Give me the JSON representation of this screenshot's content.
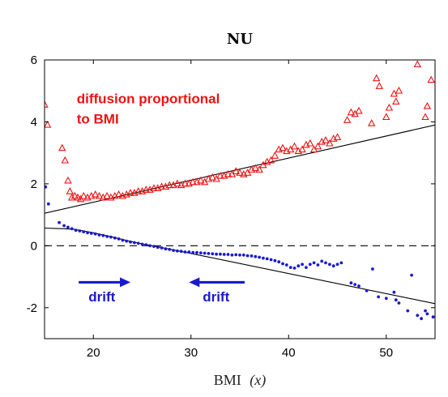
{
  "chart_data": {
    "type": "scatter",
    "title": "NU",
    "xlabel": "BMI",
    "xlabel_var": "(x)",
    "ylabel": "",
    "xlim": [
      15,
      55
    ],
    "ylim": [
      -3,
      6
    ],
    "xticks": [
      20,
      30,
      40,
      50
    ],
    "yticks": [
      -2,
      0,
      2,
      4,
      6
    ],
    "grid": false,
    "colors": {
      "diffusion": "#ee1111",
      "drift": "#1a1acc",
      "fit": "#000000"
    },
    "series": [
      {
        "marker": "triangle",
        "points": [
          [
            15.0,
            4.55
          ],
          [
            15.3,
            3.9
          ],
          [
            16.8,
            3.15
          ],
          [
            17.1,
            2.75
          ],
          [
            17.4,
            2.1
          ],
          [
            17.6,
            1.75
          ],
          [
            17.8,
            1.55
          ],
          [
            18.1,
            1.6
          ],
          [
            18.4,
            1.55
          ],
          [
            18.7,
            1.5
          ],
          [
            19.0,
            1.6
          ],
          [
            19.4,
            1.55
          ],
          [
            19.8,
            1.6
          ],
          [
            20.2,
            1.65
          ],
          [
            20.6,
            1.6
          ],
          [
            21.0,
            1.55
          ],
          [
            21.4,
            1.6
          ],
          [
            21.8,
            1.55
          ],
          [
            22.2,
            1.6
          ],
          [
            22.6,
            1.65
          ],
          [
            23.0,
            1.6
          ],
          [
            23.4,
            1.65
          ],
          [
            23.8,
            1.7
          ],
          [
            24.2,
            1.7
          ],
          [
            24.6,
            1.75
          ],
          [
            25.0,
            1.75
          ],
          [
            25.4,
            1.8
          ],
          [
            25.8,
            1.8
          ],
          [
            26.2,
            1.85
          ],
          [
            26.6,
            1.85
          ],
          [
            27.0,
            1.9
          ],
          [
            27.4,
            1.9
          ],
          [
            27.8,
            1.95
          ],
          [
            28.2,
            1.95
          ],
          [
            28.6,
            2.0
          ],
          [
            29.0,
            1.95
          ],
          [
            29.4,
            2.0
          ],
          [
            29.8,
            2.0
          ],
          [
            30.2,
            2.05
          ],
          [
            30.6,
            2.05
          ],
          [
            31.0,
            2.1
          ],
          [
            31.4,
            2.05
          ],
          [
            31.8,
            2.15
          ],
          [
            32.2,
            2.2
          ],
          [
            32.6,
            2.15
          ],
          [
            33.0,
            2.25
          ],
          [
            33.4,
            2.25
          ],
          [
            33.8,
            2.3
          ],
          [
            34.2,
            2.3
          ],
          [
            34.6,
            2.4
          ],
          [
            35.0,
            2.35
          ],
          [
            35.4,
            2.3
          ],
          [
            35.8,
            2.35
          ],
          [
            36.2,
            2.45
          ],
          [
            36.6,
            2.5
          ],
          [
            37.0,
            2.45
          ],
          [
            37.4,
            2.6
          ],
          [
            37.8,
            2.7
          ],
          [
            38.2,
            2.75
          ],
          [
            38.6,
            2.9
          ],
          [
            39.0,
            3.1
          ],
          [
            39.4,
            3.15
          ],
          [
            39.8,
            3.05
          ],
          [
            40.2,
            3.1
          ],
          [
            40.6,
            3.2
          ],
          [
            41.0,
            3.05
          ],
          [
            41.4,
            3.1
          ],
          [
            41.8,
            3.25
          ],
          [
            42.2,
            3.3
          ],
          [
            42.6,
            3.1
          ],
          [
            43.0,
            3.2
          ],
          [
            43.4,
            3.35
          ],
          [
            43.8,
            3.4
          ],
          [
            44.2,
            3.3
          ],
          [
            44.6,
            3.45
          ],
          [
            45.0,
            3.5
          ],
          [
            46.0,
            4.05
          ],
          [
            46.4,
            4.3
          ],
          [
            46.8,
            4.25
          ],
          [
            47.2,
            4.35
          ],
          [
            48.5,
            3.95
          ],
          [
            49.0,
            5.4
          ],
          [
            49.3,
            5.15
          ],
          [
            50.0,
            4.15
          ],
          [
            50.3,
            4.45
          ],
          [
            50.8,
            4.9
          ],
          [
            51.0,
            4.65
          ],
          [
            51.3,
            5.0
          ],
          [
            53.2,
            5.85
          ],
          [
            54.0,
            4.15
          ],
          [
            54.2,
            4.5
          ],
          [
            54.6,
            5.35
          ]
        ]
      },
      {
        "marker": "dot",
        "points": [
          [
            15.1,
            1.9
          ],
          [
            15.4,
            1.35
          ],
          [
            16.5,
            0.75
          ],
          [
            17.0,
            0.65
          ],
          [
            17.4,
            0.6
          ],
          [
            17.8,
            0.55
          ],
          [
            18.2,
            0.5
          ],
          [
            18.6,
            0.48
          ],
          [
            19.0,
            0.45
          ],
          [
            19.4,
            0.42
          ],
          [
            19.8,
            0.4
          ],
          [
            20.2,
            0.38
          ],
          [
            20.6,
            0.35
          ],
          [
            21.0,
            0.33
          ],
          [
            21.4,
            0.3
          ],
          [
            21.8,
            0.28
          ],
          [
            22.2,
            0.25
          ],
          [
            22.6,
            0.22
          ],
          [
            23.0,
            0.18
          ],
          [
            23.4,
            0.15
          ],
          [
            23.8,
            0.12
          ],
          [
            24.2,
            0.1
          ],
          [
            24.6,
            0.08
          ],
          [
            25.0,
            0.05
          ],
          [
            25.4,
            0.03
          ],
          [
            25.8,
            0.0
          ],
          [
            26.2,
            -0.02
          ],
          [
            26.6,
            -0.05
          ],
          [
            27.0,
            -0.07
          ],
          [
            27.4,
            -0.1
          ],
          [
            27.8,
            -0.12
          ],
          [
            28.2,
            -0.15
          ],
          [
            28.6,
            -0.17
          ],
          [
            29.0,
            -0.18
          ],
          [
            29.4,
            -0.2
          ],
          [
            29.8,
            -0.2
          ],
          [
            30.2,
            -0.22
          ],
          [
            30.6,
            -0.22
          ],
          [
            31.0,
            -0.23
          ],
          [
            31.4,
            -0.24
          ],
          [
            31.8,
            -0.25
          ],
          [
            32.2,
            -0.26
          ],
          [
            32.6,
            -0.27
          ],
          [
            33.0,
            -0.27
          ],
          [
            33.4,
            -0.28
          ],
          [
            33.8,
            -0.28
          ],
          [
            34.2,
            -0.3
          ],
          [
            34.6,
            -0.29
          ],
          [
            35.0,
            -0.3
          ],
          [
            35.4,
            -0.3
          ],
          [
            35.8,
            -0.32
          ],
          [
            36.2,
            -0.33
          ],
          [
            36.6,
            -0.35
          ],
          [
            37.0,
            -0.37
          ],
          [
            37.4,
            -0.4
          ],
          [
            37.8,
            -0.42
          ],
          [
            38.2,
            -0.45
          ],
          [
            38.6,
            -0.48
          ],
          [
            39.0,
            -0.52
          ],
          [
            39.4,
            -0.58
          ],
          [
            39.8,
            -0.62
          ],
          [
            40.2,
            -0.7
          ],
          [
            40.6,
            -0.72
          ],
          [
            41.0,
            -0.65
          ],
          [
            41.4,
            -0.6
          ],
          [
            41.8,
            -0.7
          ],
          [
            42.2,
            -0.6
          ],
          [
            42.6,
            -0.55
          ],
          [
            43.0,
            -0.62
          ],
          [
            43.4,
            -0.5
          ],
          [
            43.8,
            -0.55
          ],
          [
            44.2,
            -0.6
          ],
          [
            44.6,
            -0.65
          ],
          [
            45.0,
            -0.6
          ],
          [
            45.4,
            -0.55
          ],
          [
            46.4,
            -1.2
          ],
          [
            46.8,
            -1.25
          ],
          [
            47.2,
            -1.3
          ],
          [
            48.0,
            -1.45
          ],
          [
            48.6,
            -0.75
          ],
          [
            49.2,
            -1.65
          ],
          [
            50.0,
            -1.7
          ],
          [
            50.8,
            -1.5
          ],
          [
            51.0,
            -1.75
          ],
          [
            51.3,
            -1.85
          ],
          [
            52.2,
            -2.1
          ],
          [
            52.6,
            -0.95
          ],
          [
            53.2,
            -2.25
          ],
          [
            53.6,
            -2.35
          ],
          [
            54.0,
            -2.1
          ],
          [
            54.2,
            -2.2
          ],
          [
            54.8,
            -2.3
          ]
        ]
      }
    ],
    "fit_lines": [
      {
        "x": [
          15,
          55
        ],
        "y": [
          1.05,
          3.9
        ]
      },
      {
        "x": [
          15,
          16,
          17,
          18,
          19,
          20,
          21,
          22,
          23,
          24,
          25,
          26,
          28,
          55
        ],
        "y": [
          0.57,
          0.56,
          0.55,
          0.53,
          0.48,
          0.42,
          0.35,
          0.28,
          0.2,
          0.13,
          0.06,
          0.0,
          -0.12,
          -1.87
        ]
      }
    ],
    "reference_line": {
      "y": 0,
      "style": "dashed"
    },
    "annotations": [
      {
        "id": "diffusion-line-1",
        "text": "diffusion proportional",
        "x": 18.3,
        "y": 4.6,
        "color": "#ee1111"
      },
      {
        "id": "diffusion-line-2",
        "text": "to BMI",
        "x": 18.3,
        "y": 3.95,
        "color": "#ee1111"
      },
      {
        "id": "drift-right",
        "text": "drift",
        "x": 19.5,
        "y": -1.8,
        "color": "#1a1acc",
        "arrow": {
          "from": [
            18.5,
            -1.18
          ],
          "to": [
            23.8,
            -1.18
          ]
        }
      },
      {
        "id": "drift-left",
        "text": "drift",
        "x": 31.2,
        "y": -1.8,
        "color": "#1a1acc",
        "arrow": {
          "from": [
            35.5,
            -1.18
          ],
          "to": [
            29.8,
            -1.18
          ]
        }
      }
    ]
  }
}
